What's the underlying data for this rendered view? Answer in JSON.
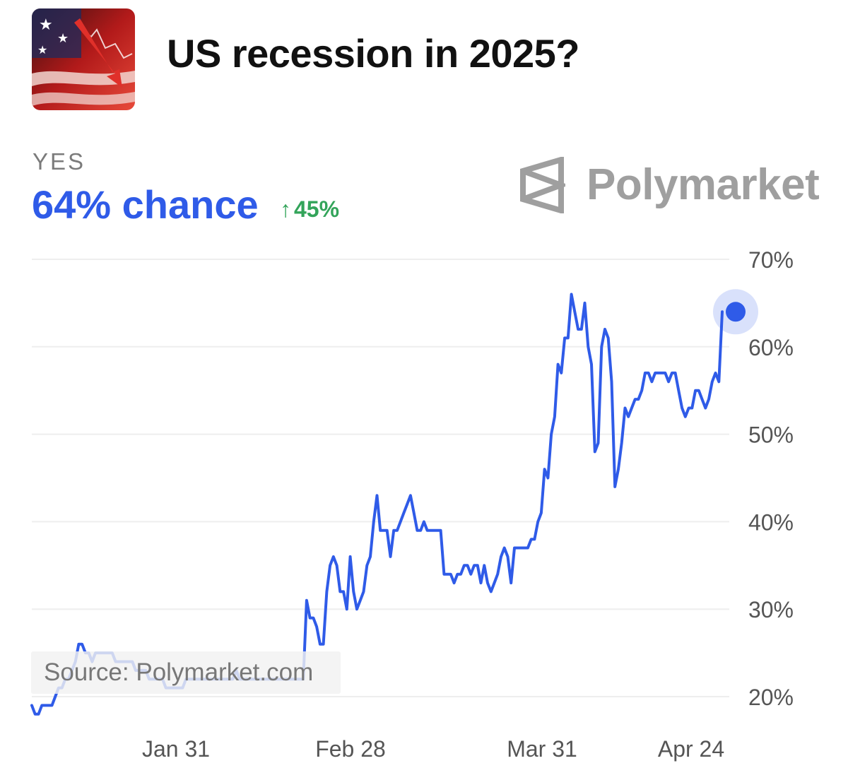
{
  "header": {
    "title": "US recession in 2025?",
    "market_icon": "us-flag-falling-stock-chart-image"
  },
  "summary": {
    "outcome_label": "YES",
    "chance": "64% chance",
    "change": "45%",
    "change_icon": "arrow-up-icon"
  },
  "branding": {
    "name": "Polymarket",
    "logo_icon": "polymarket-logo-icon"
  },
  "source_label": "Source: Polymarket.com",
  "colors": {
    "line": "#2f5be8",
    "chance_text": "#2f5be8",
    "change_text": "#33a45a",
    "grid": "#eeeeee",
    "axis_text": "#555555",
    "brand_text": "#9f9f9f"
  },
  "chart_data": {
    "type": "line",
    "title": "US recession in 2025?",
    "xlabel": "",
    "ylabel": "",
    "x_ticks": [
      "Jan 31",
      "Feb 28",
      "Mar 31",
      "Apr 24"
    ],
    "y_ticks": [
      "70%",
      "60%",
      "50%",
      "40%",
      "30%",
      "20%"
    ],
    "ylim": [
      20,
      70
    ],
    "y_axis_position": "right",
    "grid": true,
    "last_point_marker": true,
    "series": [
      {
        "values": [
          19,
          18,
          18,
          19,
          19,
          19,
          19,
          20,
          21,
          21,
          22,
          22,
          23,
          24,
          26,
          26,
          25,
          25,
          24,
          25,
          25,
          25,
          25,
          25,
          25,
          24,
          24,
          24,
          24,
          24,
          24,
          23,
          23,
          23,
          23,
          22,
          22,
          22,
          22,
          22,
          21,
          21,
          21,
          21,
          21,
          21,
          22,
          22,
          22,
          22,
          22,
          22,
          22,
          22,
          22,
          22,
          22,
          22,
          22,
          22,
          22,
          23,
          22,
          22,
          22,
          22,
          22,
          22,
          22,
          22,
          22,
          22,
          22,
          22,
          22,
          22,
          22,
          22,
          22,
          22,
          22,
          22,
          31,
          29,
          29,
          28,
          26,
          26,
          32,
          35,
          36,
          35,
          32,
          32,
          30,
          36,
          32,
          30,
          31,
          32,
          35,
          36,
          40,
          43,
          39,
          39,
          39,
          36,
          39,
          39,
          40,
          41,
          42,
          43,
          41,
          39,
          39,
          40,
          39,
          39,
          39,
          39,
          39,
          34,
          34,
          34,
          33,
          34,
          34,
          35,
          35,
          34,
          35,
          35,
          33,
          35,
          33,
          32,
          33,
          34,
          36,
          37,
          36,
          33,
          37,
          37,
          37,
          37,
          37,
          38,
          38,
          40,
          41,
          46,
          45,
          50,
          52,
          58,
          57,
          61,
          61,
          66,
          64,
          62,
          62,
          65,
          60,
          58,
          48,
          49,
          60,
          62,
          61,
          56,
          44,
          46,
          49,
          53,
          52,
          53,
          54,
          54,
          55,
          57,
          57,
          56,
          57,
          57,
          57,
          57,
          56,
          57,
          57,
          55,
          53,
          52,
          53,
          53,
          55,
          55,
          54,
          53,
          54,
          56,
          57,
          56,
          64
        ]
      }
    ]
  }
}
